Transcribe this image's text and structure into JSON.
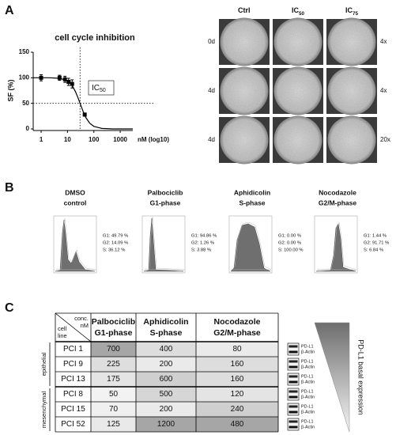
{
  "panel_labels": [
    "A",
    "B",
    "C"
  ],
  "chart_data": {
    "type": "scatter",
    "title": "cell cycle inhibition",
    "y_label": "SF (%)",
    "x_label": "nM (log10)",
    "x_log": true,
    "xlim": [
      0.5,
      3000
    ],
    "ylim": [
      0,
      150
    ],
    "xticks": [
      1,
      10,
      100,
      1000
    ],
    "yticks": [
      0,
      50,
      100,
      150
    ],
    "x": [
      1,
      5,
      8,
      11,
      15,
      45
    ],
    "values": [
      100,
      100,
      97,
      92,
      88,
      28
    ],
    "errors": [
      6,
      5,
      6,
      7,
      8,
      3
    ],
    "color": "#000000",
    "fit_x": [
      0.5,
      1,
      2,
      5,
      10,
      15,
      20,
      25,
      30,
      40,
      50,
      70,
      100,
      200,
      500,
      3000
    ],
    "fit_values": [
      100,
      100,
      100,
      99,
      94,
      85,
      73,
      61,
      50,
      33,
      22,
      11,
      5,
      1,
      0,
      0
    ],
    "reference_x": 30,
    "reference_y": 50,
    "annotation": {
      "main": "IC",
      "sub": "50"
    }
  },
  "micrographs": {
    "columns": [
      {
        "main": "Ctrl",
        "sub": ""
      },
      {
        "main": "IC",
        "sub": "50"
      },
      {
        "main": "IC",
        "sub": "75"
      }
    ],
    "rows": [
      "0d",
      "4d",
      "4d"
    ],
    "magnifications": [
      "4x",
      "4x",
      "20x"
    ]
  },
  "flow": [
    {
      "title": [
        "DMSO",
        "control"
      ],
      "stats": [
        "G1: 49.79 %",
        "G2: 14.09 %",
        "S: 36.12 %"
      ]
    },
    {
      "title": [
        "Palbociclib",
        "G1-phase"
      ],
      "stats": [
        "G1: 94.86 %",
        "G2: 1.26 %",
        "S: 3.88 %"
      ]
    },
    {
      "title": [
        "Aphidicolin",
        "S-phase"
      ],
      "stats": [
        "G1: 0.00 %",
        "G2: 0.00 %",
        "S: 100.00 %"
      ]
    },
    {
      "title": [
        "Nocodazole",
        "G2/M-phase"
      ],
      "stats": [
        "G1: 1.44 %",
        "G2: 91.71 %",
        "S: 6.84 %"
      ]
    }
  ],
  "table": {
    "corner_top": [
      "conc.",
      "nM"
    ],
    "corner_bottom": [
      "cell",
      "line"
    ],
    "columns": [
      [
        "Palbociclib",
        "G1-phase"
      ],
      [
        "Aphidicolin",
        "S-phase"
      ],
      [
        "Nocodazole",
        "G2/M-phase"
      ]
    ],
    "groups": [
      "epithelial",
      "mesenchymal"
    ],
    "rows": [
      [
        "PCI 1",
        700,
        400,
        80
      ],
      [
        "PCI 9",
        225,
        200,
        160
      ],
      [
        "PCI 13",
        175,
        600,
        160
      ],
      [
        "PCI 8",
        50,
        500,
        120
      ],
      [
        "PCI 15",
        70,
        200,
        240
      ],
      [
        "PCI 52",
        125,
        1200,
        480
      ]
    ],
    "blot_labels": [
      "PD-L1",
      "β-Actin"
    ],
    "expression_label": "PD-L1 basal expression"
  }
}
